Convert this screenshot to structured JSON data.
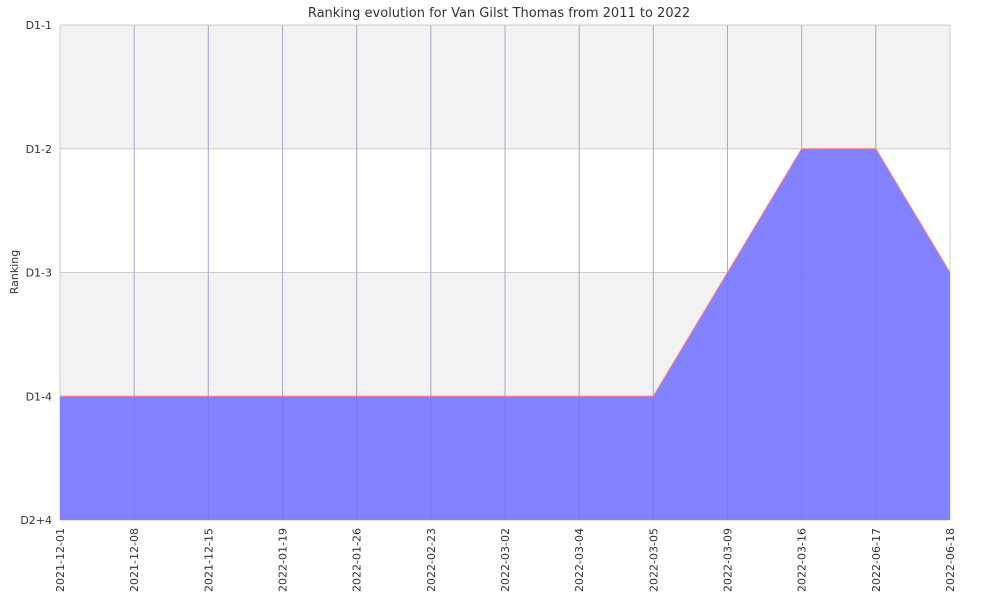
{
  "chart_data": {
    "type": "area",
    "title": "Ranking evolution for Van Gilst Thomas from 2011 to 2022",
    "xlabel": "",
    "ylabel": "Ranking",
    "categories": [
      "2021-12-01",
      "2021-12-08",
      "2021-12-15",
      "2022-01-19",
      "2022-01-26",
      "2022-02-23",
      "2022-03-02",
      "2022-03-04",
      "2022-03-05",
      "2022-03-09",
      "2022-03-16",
      "2022-06-17",
      "2022-06-18"
    ],
    "y_ticks": [
      "D1-1",
      "D1-2",
      "D1-3",
      "D1-4",
      "D2+4"
    ],
    "values": [
      "D1-4",
      "D1-4",
      "D1-4",
      "D1-4",
      "D1-4",
      "D1-4",
      "D1-4",
      "D1-4",
      "D1-4",
      "D1-3",
      "D1-2",
      "D1-2",
      "D1-3"
    ],
    "grid": true,
    "colors": {
      "fill": "#7f7fff",
      "line": "#ff7f7f",
      "band": "#f2f2f2"
    }
  }
}
